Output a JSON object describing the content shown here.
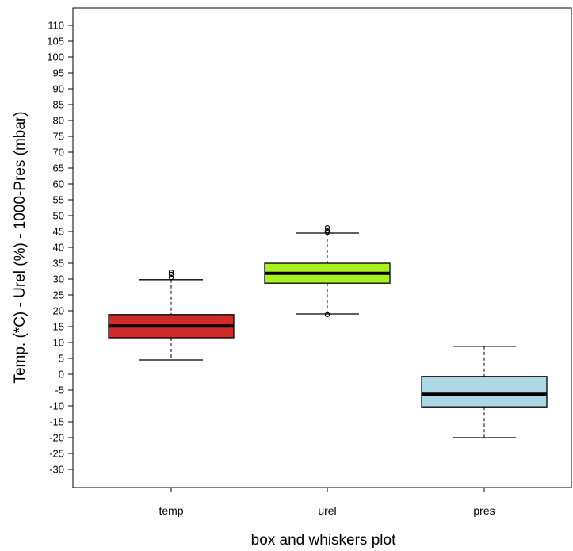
{
  "chart_data": {
    "type": "boxplot",
    "xlabel": "box and whiskers plot",
    "ylabel": "Temp. (*C) - Urel (%) - 1000-Pres (mbar)",
    "ylim": [
      -35,
      114
    ],
    "yticks": [
      110,
      105,
      100,
      95,
      90,
      85,
      80,
      75,
      70,
      65,
      60,
      55,
      50,
      45,
      40,
      35,
      30,
      25,
      20,
      15,
      10,
      5,
      0,
      -5,
      -10,
      -15,
      -20,
      -25,
      -30
    ],
    "grid": false,
    "categories": [
      "temp",
      "urel",
      "pres"
    ],
    "series": [
      {
        "whisker_low": 4.5,
        "q1": 11.5,
        "median": 15.2,
        "q3": 18.8,
        "whisker_high": 29.8,
        "outliers": [
          30.5,
          31.5,
          32.2
        ],
        "color": "#d02a2a"
      },
      {
        "whisker_low": 19.0,
        "q1": 28.7,
        "median": 31.8,
        "q3": 35.0,
        "whisker_high": 44.5,
        "outliers": [
          18.8,
          44.7,
          45.2,
          46.2
        ],
        "color": "#a8f020"
      },
      {
        "whisker_low": -20.0,
        "q1": -10.3,
        "median": -6.3,
        "q3": -0.7,
        "whisker_high": 8.8,
        "outliers": [],
        "color": "#add8e6"
      }
    ]
  }
}
